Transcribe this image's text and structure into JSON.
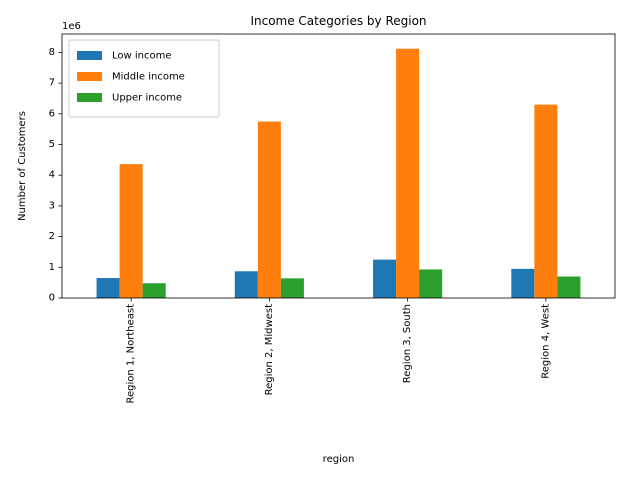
{
  "chart_data": {
    "type": "bar",
    "title": "Income Categories by Region",
    "xlabel": "region",
    "ylabel": "Number of Customers",
    "y_scale_label": "1e6",
    "categories": [
      "Region 1, Northeast",
      "Region 2, Midwest",
      "Region 3, South",
      "Region 4, West"
    ],
    "series": [
      {
        "name": "Low income",
        "color": "#1f77b4",
        "values": [
          650000,
          870000,
          1250000,
          950000
        ]
      },
      {
        "name": "Middle income",
        "color": "#ff7f0e",
        "values": [
          4360000,
          5750000,
          8120000,
          6300000
        ]
      },
      {
        "name": "Upper income",
        "color": "#2ca02c",
        "values": [
          480000,
          640000,
          930000,
          700000
        ]
      }
    ],
    "y_ticks": [
      0,
      1,
      2,
      3,
      4,
      5,
      6,
      7,
      8
    ],
    "ylim": [
      0,
      8600000
    ],
    "legend_position": "upper-left",
    "grid": false
  }
}
